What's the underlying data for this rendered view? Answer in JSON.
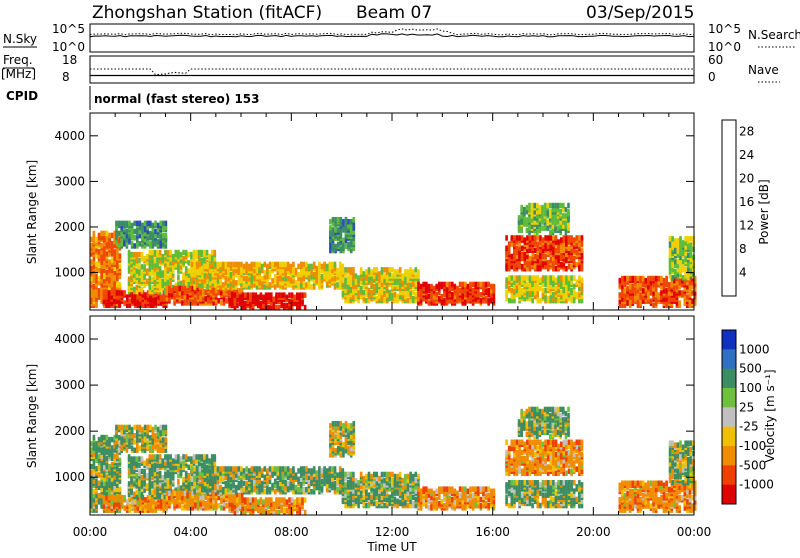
{
  "header": {
    "station": "Zhongshan Station (fitACF)",
    "beam": "Beam 07",
    "date": "03/Sep/2015"
  },
  "status_panels": {
    "nsky_label": "N.Sky",
    "nsearch_label": "N.Search",
    "noise_ticks": [
      "10^5",
      "10^0"
    ],
    "freq_label_top": "Freq.",
    "freq_label_bottom": "[MHz]",
    "freq_ticks": [
      "18",
      "8"
    ],
    "nave_label": "Nave",
    "nave_ticks": [
      "60",
      "0"
    ],
    "cpid_label": "CPID",
    "cpid_text": "normal (fast stereo) 153"
  },
  "chart_data": [
    {
      "type": "heatmap",
      "title": "",
      "xlabel": "Time UT",
      "ylabel": "Slant Range [km]",
      "x_ticks": [
        "00:00",
        "04:00",
        "08:00",
        "12:00",
        "16:00",
        "20:00",
        "00:00"
      ],
      "xlim_hours": [
        0,
        24
      ],
      "ylim": [
        180,
        4500
      ],
      "y_ticks": [
        1000,
        2000,
        3000,
        4000
      ],
      "colorbar": {
        "label": "Power [dB]",
        "ticks": [
          4,
          8,
          12,
          16,
          20,
          24,
          28
        ],
        "range": [
          0,
          30
        ],
        "colors": [
          "#0000ff",
          "#2c4fb4",
          "#3c8c64",
          "#5cbc3c",
          "#f0d000",
          "#f08c00",
          "#f04800",
          "#e00000"
        ]
      }
    },
    {
      "type": "heatmap",
      "title": "",
      "xlabel": "Time UT",
      "ylabel": "Slant Range [km]",
      "x_ticks": [
        "00:00",
        "04:00",
        "08:00",
        "12:00",
        "16:00",
        "20:00",
        "00:00"
      ],
      "xlim_hours": [
        0,
        24
      ],
      "ylim": [
        180,
        4500
      ],
      "y_ticks": [
        1000,
        2000,
        3000,
        4000
      ],
      "colorbar": {
        "label": "Velocity [m s⁻¹]",
        "ticks": [
          "1000",
          "500",
          "100",
          "25",
          "-25",
          "-100",
          "-500",
          "-1000"
        ],
        "colors": [
          "#1030c0",
          "#3070c0",
          "#3c8c64",
          "#70c040",
          "#c0c0c0",
          "#f0c000",
          "#f08c00",
          "#f04000",
          "#e00000"
        ]
      }
    }
  ]
}
